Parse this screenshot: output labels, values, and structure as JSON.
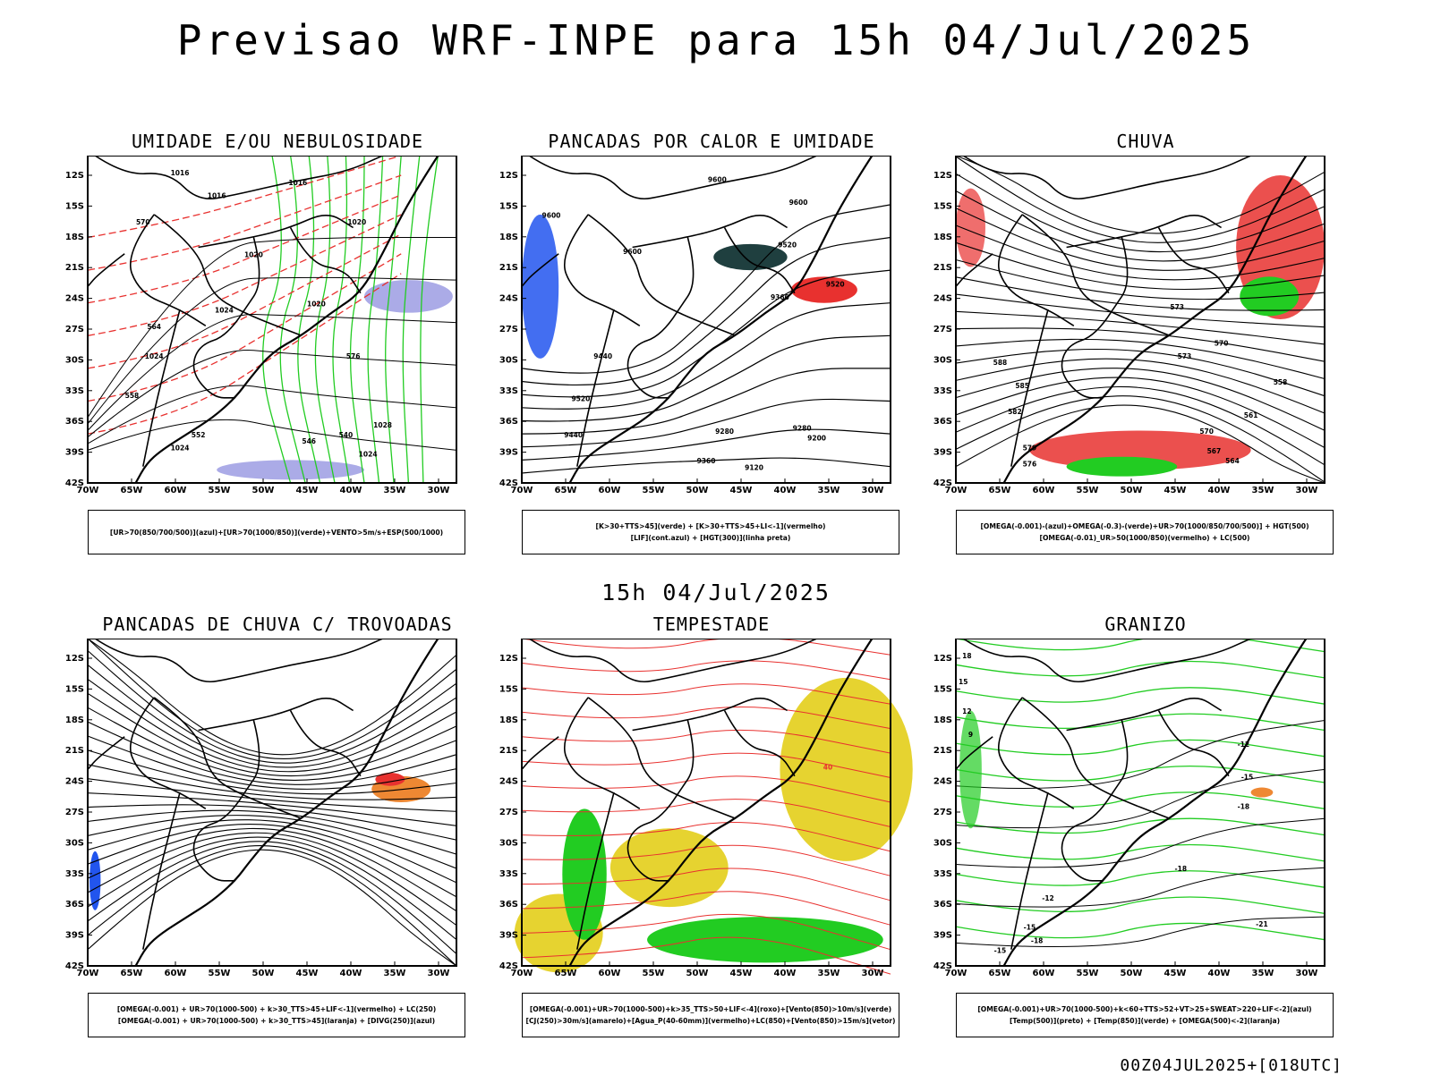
{
  "title": "Previsao WRF-INPE  para 15h 04/Jul/2025",
  "mid_time": "15h 04/Jul/2025",
  "run_info": "00Z04JUL2025+[018UTC]",
  "axes": {
    "lat": [
      "12S",
      "15S",
      "18S",
      "21S",
      "24S",
      "27S",
      "30S",
      "33S",
      "36S",
      "39S",
      "42S"
    ],
    "lon": [
      "70W",
      "65W",
      "60W",
      "55W",
      "50W",
      "45W",
      "40W",
      "35W",
      "30W"
    ]
  },
  "colors": {
    "red": "#e8312f",
    "green": "#22cc22",
    "blue": "#2255ee",
    "purple": "#8888dd",
    "orange": "#ee8833",
    "yellow": "#e6d330",
    "darkteal": "#1f3f3f"
  },
  "panels": [
    {
      "title": "UMIDADE E/OU NEBULOSIDADE",
      "legend": [
        "[UR>70(850/700/500)](azul)+[UR>70(1000/850)](verde)+VENTO>5m/s+ESP(500/1000)"
      ],
      "contour_labels": [
        "1016",
        "1016",
        "1016",
        "1020",
        "1020",
        "1020",
        "1024",
        "1024",
        "1024",
        "1024",
        "1028",
        "570",
        "564",
        "558",
        "552",
        "546",
        "540",
        "576"
      ]
    },
    {
      "title": "PANCADAS POR CALOR E UMIDADE",
      "legend": [
        "[K>30+TTS>45](verde) + [K>30+TTS>45+LI<-1](vermelho)",
        "[LIF](cont.azul) + [HGT(300)](linha preta)"
      ],
      "contour_labels": [
        "9600",
        "9600",
        "9600",
        "9520",
        "9520",
        "9440",
        "9360",
        "9280",
        "9200",
        "9120",
        "9280",
        "9360",
        "9440",
        "9520",
        "9600"
      ]
    },
    {
      "title": "CHUVA",
      "legend": [
        "[OMEGA(-0.001)-(azul)+OMEGA(-0.3)-(verde)+UR>70(1000/850/700/500)] + HGT(500)",
        "[OMEGA(-0.01)_UR>50(1000/850)(vermelho) + LC(500)"
      ],
      "contour_labels": [
        "588",
        "585",
        "582",
        "579",
        "576",
        "573",
        "570",
        "567",
        "564",
        "561",
        "558",
        "573",
        "570"
      ]
    },
    {
      "title": "PANCADAS DE CHUVA C/ TROVOADAS",
      "legend": [
        "[OMEGA(-0.001) + UR>70(1000-500) + k>30_TTS>45+LIF<-1](vermelho) + LC(250)",
        "[OMEGA(-0.001) + UR>70(1000-500) + k>30_TTS>45](laranja) + [DIVG(250)](azul)"
      ],
      "contour_labels": []
    },
    {
      "title": "TEMPESTADE",
      "legend": [
        "[OMEGA(-0.001)+UR>70(1000-500)+k>35_TTS>50+LIF<-4](roxo)+[Vento(850)>10m/s](verde)",
        "[CJ(250)>30m/s](amarelo)+[Agua_P(40-60mm)](vermelho)+LC(850)+[Vento(850)>15m/s](vetor)"
      ],
      "contour_labels": [
        "40"
      ]
    },
    {
      "title": "GRANIZO",
      "legend": [
        "[OMEGA(-0.001)+UR>70(1000-500)+k<60+TTS>52+VT>25+SWEAT>220+LIF<-2](azul)",
        "[Temp(500)](preto) + [Temp(850)](verde) + [OMEGA(500)<-2](laranja)"
      ],
      "contour_labels": [
        "-12",
        "-15",
        "-18",
        "-12",
        "-15",
        "-18",
        "-21",
        "-15",
        "-18",
        "18",
        "15",
        "12",
        "9"
      ]
    }
  ]
}
